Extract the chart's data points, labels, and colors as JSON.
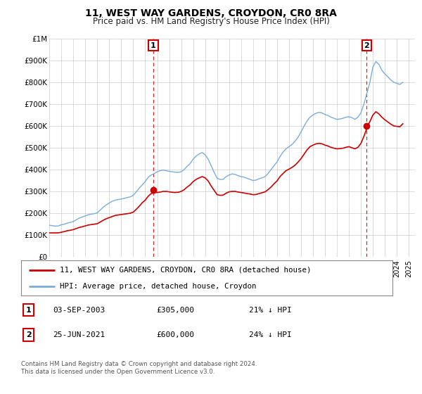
{
  "title": "11, WEST WAY GARDENS, CROYDON, CR0 8RA",
  "subtitle": "Price paid vs. HM Land Registry's House Price Index (HPI)",
  "ylim": [
    0,
    1000000
  ],
  "xlim_start": 1995.0,
  "xlim_end": 2025.5,
  "yticks": [
    0,
    100000,
    200000,
    300000,
    400000,
    500000,
    600000,
    700000,
    800000,
    900000,
    1000000
  ],
  "ytick_labels": [
    "£0",
    "£100K",
    "£200K",
    "£300K",
    "£400K",
    "£500K",
    "£600K",
    "£700K",
    "£800K",
    "£900K",
    "£1M"
  ],
  "xticks": [
    1995,
    1996,
    1997,
    1998,
    1999,
    2000,
    2001,
    2002,
    2003,
    2004,
    2005,
    2006,
    2007,
    2008,
    2009,
    2010,
    2011,
    2012,
    2013,
    2014,
    2015,
    2016,
    2017,
    2018,
    2019,
    2020,
    2021,
    2022,
    2023,
    2024,
    2025
  ],
  "sale1_x": 2003.67,
  "sale1_y": 305000,
  "sale2_x": 2021.49,
  "sale2_y": 600000,
  "sale1_label": "1",
  "sale2_label": "2",
  "sale1_date": "03-SEP-2003",
  "sale1_price": "£305,000",
  "sale1_hpi": "21% ↓ HPI",
  "sale2_date": "25-JUN-2021",
  "sale2_price": "£600,000",
  "sale2_hpi": "24% ↓ HPI",
  "legend_label1": "11, WEST WAY GARDENS, CROYDON, CR0 8RA (detached house)",
  "legend_label2": "HPI: Average price, detached house, Croydon",
  "price_color": "#cc0000",
  "hpi_color": "#7aaddb",
  "plot_bg": "#ffffff",
  "footer_text1": "Contains HM Land Registry data © Crown copyright and database right 2024.",
  "footer_text2": "This data is licensed under the Open Government Licence v3.0.",
  "hpi_data_x": [
    1995.0,
    1995.25,
    1995.5,
    1995.75,
    1996.0,
    1996.25,
    1996.5,
    1996.75,
    1997.0,
    1997.25,
    1997.5,
    1997.75,
    1998.0,
    1998.25,
    1998.5,
    1998.75,
    1999.0,
    1999.25,
    1999.5,
    1999.75,
    2000.0,
    2000.25,
    2000.5,
    2000.75,
    2001.0,
    2001.25,
    2001.5,
    2001.75,
    2002.0,
    2002.25,
    2002.5,
    2002.75,
    2003.0,
    2003.25,
    2003.5,
    2003.75,
    2004.0,
    2004.25,
    2004.5,
    2004.75,
    2005.0,
    2005.25,
    2005.5,
    2005.75,
    2006.0,
    2006.25,
    2006.5,
    2006.75,
    2007.0,
    2007.25,
    2007.5,
    2007.75,
    2008.0,
    2008.25,
    2008.5,
    2008.75,
    2009.0,
    2009.25,
    2009.5,
    2009.75,
    2010.0,
    2010.25,
    2010.5,
    2010.75,
    2011.0,
    2011.25,
    2011.5,
    2011.75,
    2012.0,
    2012.25,
    2012.5,
    2012.75,
    2013.0,
    2013.25,
    2013.5,
    2013.75,
    2014.0,
    2014.25,
    2014.5,
    2014.75,
    2015.0,
    2015.25,
    2015.5,
    2015.75,
    2016.0,
    2016.25,
    2016.5,
    2016.75,
    2017.0,
    2017.25,
    2017.5,
    2017.75,
    2018.0,
    2018.25,
    2018.5,
    2018.75,
    2019.0,
    2019.25,
    2019.5,
    2019.75,
    2020.0,
    2020.25,
    2020.5,
    2020.75,
    2021.0,
    2021.25,
    2021.5,
    2021.75,
    2022.0,
    2022.25,
    2022.5,
    2022.75,
    2023.0,
    2023.25,
    2023.5,
    2023.75,
    2024.0,
    2024.25,
    2024.5
  ],
  "hpi_data_y": [
    145000,
    143000,
    141000,
    142000,
    147000,
    150000,
    155000,
    158000,
    162000,
    170000,
    178000,
    183000,
    188000,
    193000,
    196000,
    198000,
    202000,
    215000,
    228000,
    238000,
    247000,
    255000,
    260000,
    263000,
    265000,
    268000,
    272000,
    275000,
    282000,
    298000,
    315000,
    330000,
    345000,
    365000,
    375000,
    382000,
    390000,
    395000,
    398000,
    395000,
    392000,
    390000,
    388000,
    387000,
    390000,
    400000,
    415000,
    428000,
    448000,
    462000,
    472000,
    478000,
    468000,
    448000,
    418000,
    388000,
    360000,
    355000,
    355000,
    368000,
    375000,
    380000,
    378000,
    372000,
    368000,
    365000,
    360000,
    355000,
    350000,
    352000,
    358000,
    362000,
    368000,
    382000,
    400000,
    418000,
    435000,
    460000,
    480000,
    495000,
    505000,
    515000,
    530000,
    548000,
    572000,
    598000,
    622000,
    640000,
    650000,
    658000,
    662000,
    660000,
    652000,
    648000,
    640000,
    635000,
    630000,
    632000,
    635000,
    640000,
    642000,
    638000,
    630000,
    640000,
    660000,
    700000,
    750000,
    800000,
    870000,
    895000,
    882000,
    855000,
    838000,
    825000,
    810000,
    800000,
    795000,
    790000,
    800000
  ],
  "price_data_x": [
    1995.0,
    1995.25,
    1995.5,
    1995.75,
    1996.0,
    1996.25,
    1996.5,
    1996.75,
    1997.0,
    1997.25,
    1997.5,
    1997.75,
    1998.0,
    1998.25,
    1998.5,
    1998.75,
    1999.0,
    1999.25,
    1999.5,
    1999.75,
    2000.0,
    2000.25,
    2000.5,
    2000.75,
    2001.0,
    2001.25,
    2001.5,
    2001.75,
    2002.0,
    2002.25,
    2002.5,
    2002.75,
    2003.0,
    2003.25,
    2003.5,
    2003.75,
    2004.0,
    2004.25,
    2004.5,
    2004.75,
    2005.0,
    2005.25,
    2005.5,
    2005.75,
    2006.0,
    2006.25,
    2006.5,
    2006.75,
    2007.0,
    2007.25,
    2007.5,
    2007.75,
    2008.0,
    2008.25,
    2008.5,
    2008.75,
    2009.0,
    2009.25,
    2009.5,
    2009.75,
    2010.0,
    2010.25,
    2010.5,
    2010.75,
    2011.0,
    2011.25,
    2011.5,
    2011.75,
    2012.0,
    2012.25,
    2012.5,
    2012.75,
    2013.0,
    2013.25,
    2013.5,
    2013.75,
    2014.0,
    2014.25,
    2014.5,
    2014.75,
    2015.0,
    2015.25,
    2015.5,
    2015.75,
    2016.0,
    2016.25,
    2016.5,
    2016.75,
    2017.0,
    2017.25,
    2017.5,
    2017.75,
    2018.0,
    2018.25,
    2018.5,
    2018.75,
    2019.0,
    2019.25,
    2019.5,
    2019.75,
    2020.0,
    2020.25,
    2020.5,
    2020.75,
    2021.0,
    2021.25,
    2021.5,
    2021.75,
    2022.0,
    2022.25,
    2022.5,
    2022.75,
    2023.0,
    2023.25,
    2023.5,
    2023.75,
    2024.0,
    2024.25,
    2024.5
  ],
  "price_data_y": [
    110000,
    110000,
    110000,
    110000,
    113000,
    116000,
    120000,
    122000,
    125000,
    130000,
    135000,
    138000,
    142000,
    146000,
    148000,
    150000,
    152000,
    160000,
    168000,
    175000,
    180000,
    185000,
    190000,
    192000,
    194000,
    196000,
    198000,
    200000,
    205000,
    218000,
    232000,
    248000,
    260000,
    278000,
    290000,
    295000,
    295000,
    297000,
    300000,
    300000,
    298000,
    296000,
    295000,
    296000,
    300000,
    308000,
    320000,
    330000,
    345000,
    355000,
    362000,
    368000,
    362000,
    348000,
    325000,
    305000,
    285000,
    282000,
    283000,
    292000,
    298000,
    300000,
    300000,
    297000,
    295000,
    293000,
    290000,
    288000,
    285000,
    286000,
    290000,
    294000,
    298000,
    308000,
    320000,
    335000,
    348000,
    368000,
    382000,
    395000,
    402000,
    410000,
    420000,
    434000,
    450000,
    470000,
    490000,
    505000,
    512000,
    518000,
    520000,
    518000,
    512000,
    508000,
    502000,
    498000,
    495000,
    496000,
    498000,
    502000,
    505000,
    500000,
    495000,
    502000,
    520000,
    552000,
    590000,
    620000,
    650000,
    665000,
    655000,
    640000,
    628000,
    618000,
    608000,
    600000,
    598000,
    596000,
    610000
  ]
}
